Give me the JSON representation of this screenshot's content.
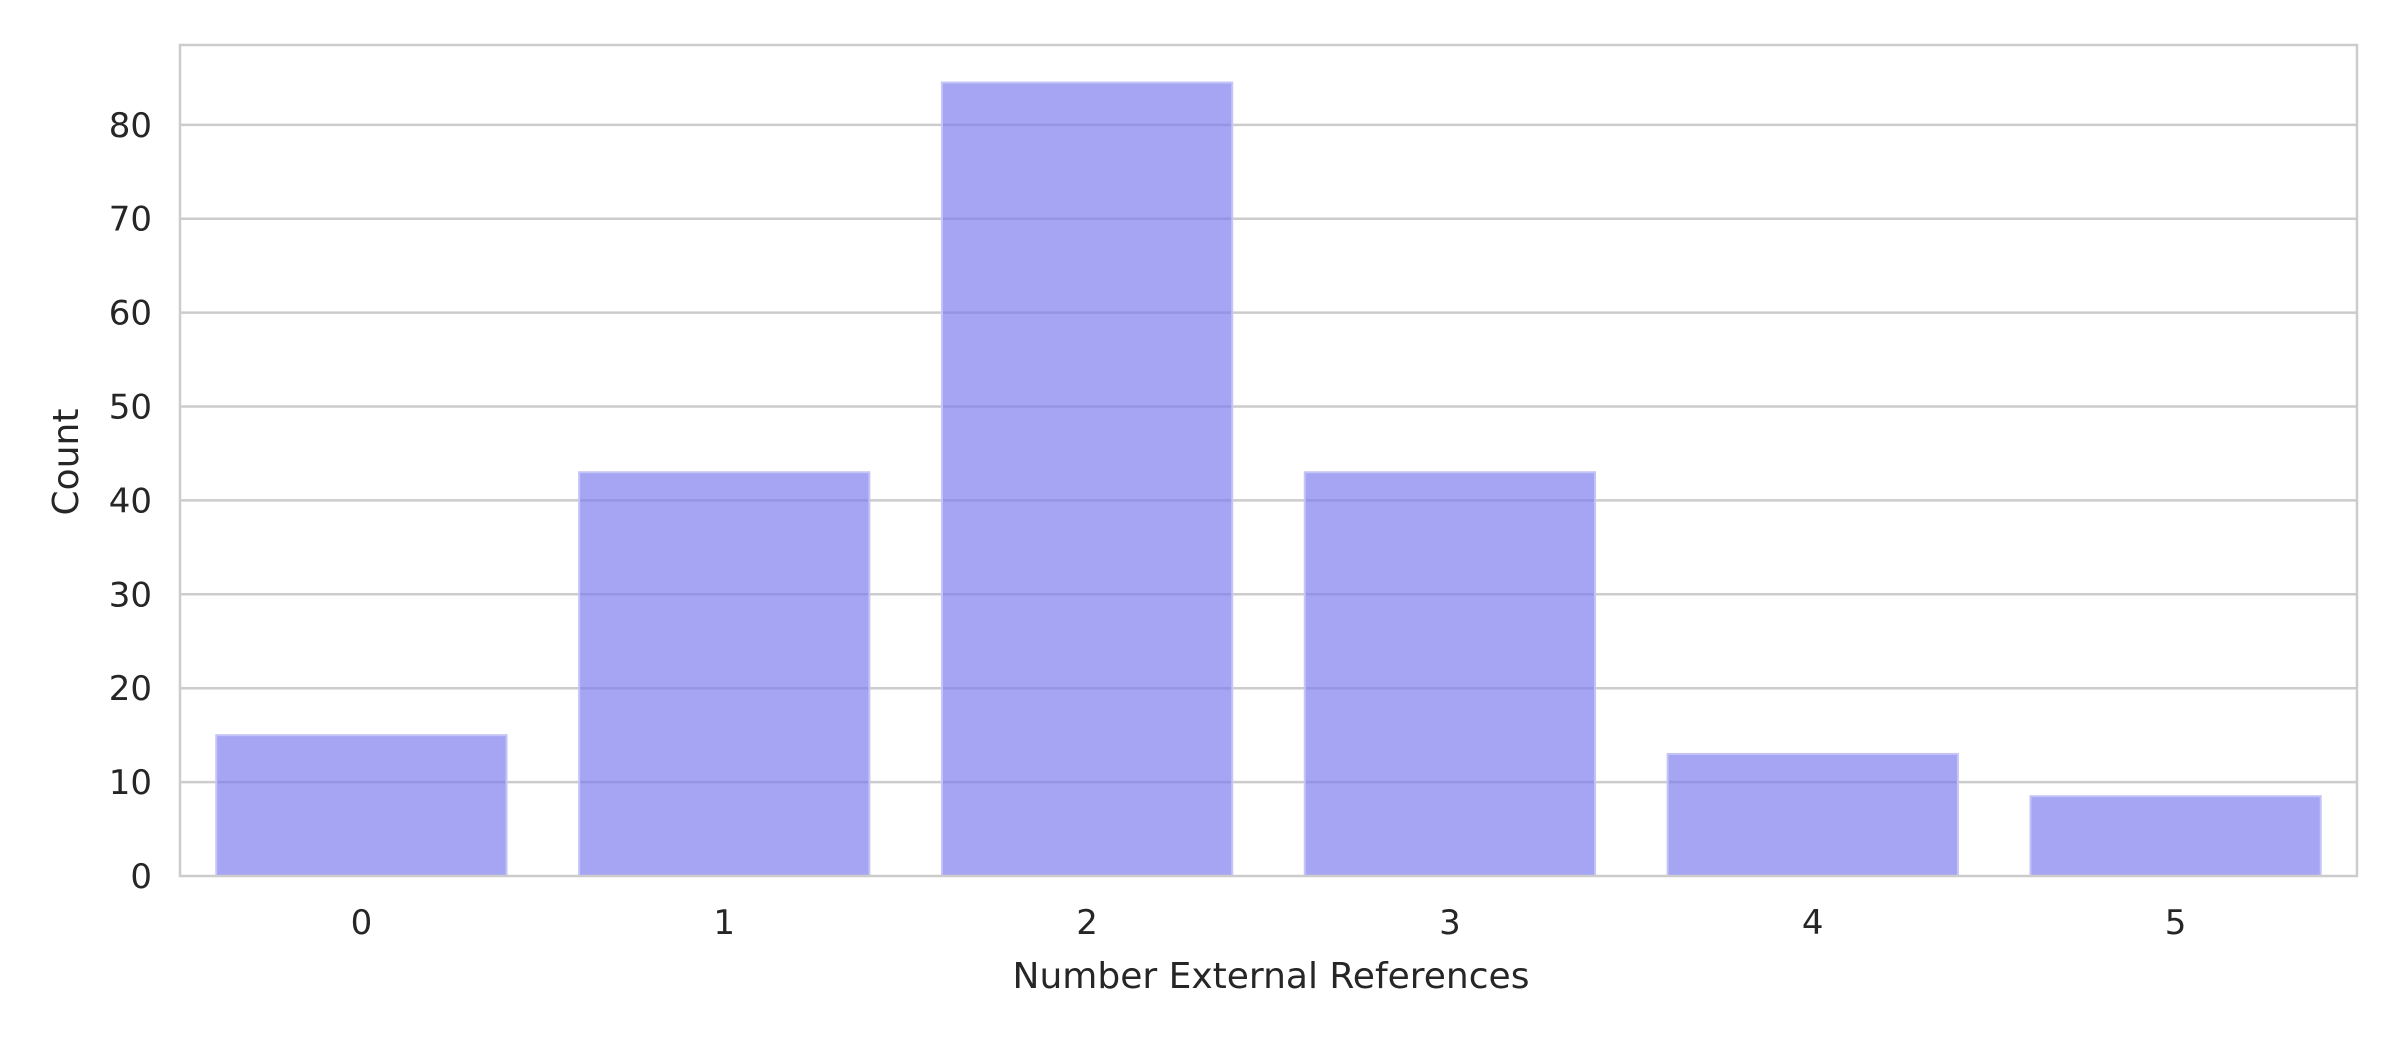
{
  "chart_data": {
    "type": "bar",
    "categories": [
      "0",
      "1",
      "2",
      "3",
      "4",
      "5"
    ],
    "values": [
      15,
      43,
      84.5,
      43,
      13,
      8.5
    ],
    "xlabel": "Number External References",
    "ylabel": "Count",
    "ylim": [
      0,
      88.5
    ],
    "yticks": [
      0,
      10,
      20,
      30,
      40,
      50,
      60,
      70,
      80
    ],
    "grid": "horizontal",
    "legend": "none",
    "colors": {
      "bar_fill": "#7b7bef",
      "bar_edge": "#c4c4f7",
      "grid": "#cccccc",
      "spine": "#cccccc",
      "text": "#262626",
      "background": "#ffffff"
    }
  }
}
